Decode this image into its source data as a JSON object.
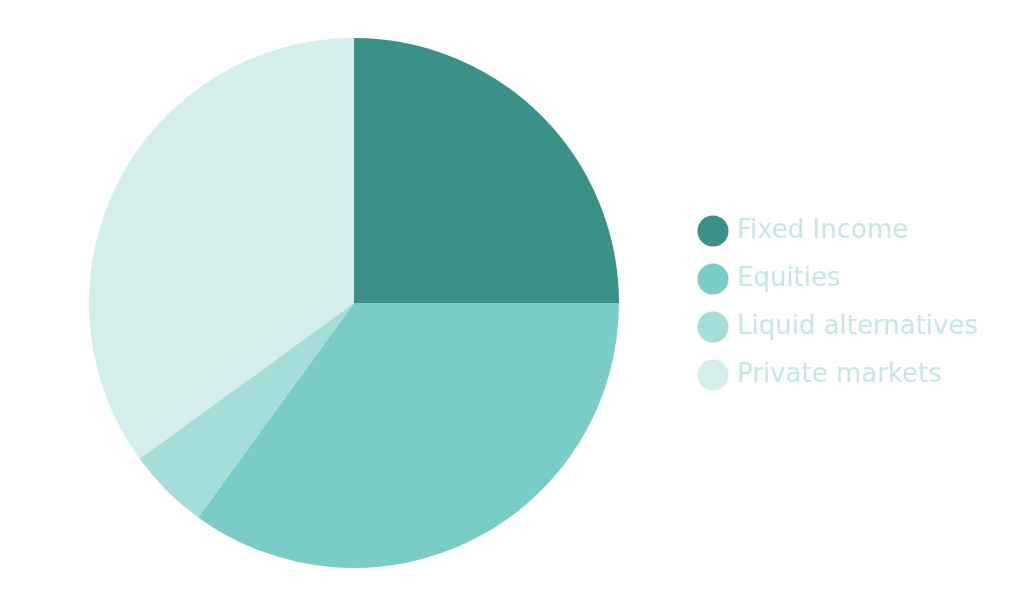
{
  "chart_data": {
    "type": "pie",
    "categories": [
      "Fixed Income",
      "Equities",
      "Liquid alternatives",
      "Private markets"
    ],
    "values": [
      25,
      35,
      5,
      35
    ],
    "colors": [
      "#3a9188",
      "#79cdc6",
      "#a5ddd8",
      "#d3eeeb"
    ],
    "legend": "right"
  }
}
